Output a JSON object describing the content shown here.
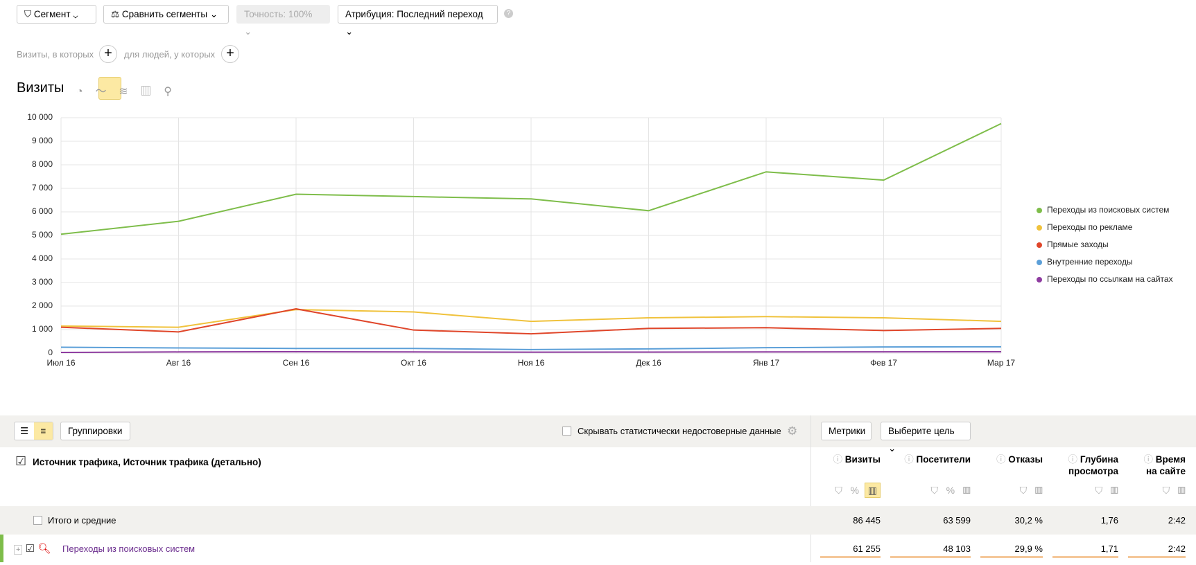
{
  "toolbar": {
    "segment": "Сегмент",
    "compare": "Сравнить сегменты",
    "accuracy": "Точность: 100%",
    "attribution": "Атрибуция: Последний переход"
  },
  "filters": {
    "visits": "Визиты, в которых",
    "people": "для людей, у которых"
  },
  "report_title": "Визиты",
  "chart_data": {
    "type": "line",
    "x": [
      "Июл 16",
      "Авг 16",
      "Сен 16",
      "Окт 16",
      "Ноя 16",
      "Дек 16",
      "Янв 17",
      "Фев 17",
      "Мар 17"
    ],
    "series": [
      {
        "name": "Переходы из поисковых систем",
        "color": "#7ebd4a",
        "values": [
          5050,
          5600,
          6750,
          6650,
          6550,
          6050,
          7700,
          7350,
          9750
        ]
      },
      {
        "name": "Переходы по рекламе",
        "color": "#f0c23c",
        "values": [
          1150,
          1100,
          1850,
          1750,
          1350,
          1500,
          1550,
          1500,
          1350
        ]
      },
      {
        "name": "Прямые заходы",
        "color": "#e0462a",
        "values": [
          1100,
          900,
          1880,
          980,
          820,
          1050,
          1080,
          960,
          1050
        ]
      },
      {
        "name": "Внутренние переходы",
        "color": "#5b9fd8",
        "values": [
          250,
          220,
          200,
          200,
          150,
          180,
          230,
          260,
          270
        ]
      },
      {
        "name": "Переходы по ссылкам на сайтах",
        "color": "#8e3ba0",
        "values": [
          30,
          50,
          60,
          50,
          40,
          45,
          50,
          55,
          60
        ]
      }
    ],
    "ylim": [
      0,
      10000
    ],
    "yticks": [
      0,
      {
        "value": 1000,
        "label": "1 000"
      },
      {
        "value": 2000,
        "label": "2 000"
      },
      {
        "value": 3000,
        "label": "3 000"
      },
      {
        "value": 4000,
        "label": "4 000"
      },
      {
        "value": 5000,
        "label": "5 000"
      },
      {
        "value": 6000,
        "label": "6 000"
      },
      {
        "value": 7000,
        "label": "7 000"
      },
      {
        "value": 8000,
        "label": "8 000"
      },
      {
        "value": 9000,
        "label": "9 000"
      },
      {
        "value": 10000,
        "label": "10 000"
      }
    ],
    "grid": true,
    "legend": "right"
  },
  "table": {
    "groupings": "Группировки",
    "hide_unreliable": "Скрывать статистически недостоверные данные",
    "metrics": "Метрики",
    "goal": "Выберите цель",
    "dimension": "Источник трафика, Источник трафика (детально)",
    "columns": [
      [
        "Визиты"
      ],
      [
        "Посетители"
      ],
      [
        "Отказы"
      ],
      [
        "Глубина",
        "просмотра"
      ],
      [
        "Время",
        "на сайте"
      ]
    ],
    "rows": [
      {
        "label": "Итого и средние",
        "cells": [
          "86 445",
          "63 599",
          "30,2 %",
          "1,76",
          "2:42"
        ]
      },
      {
        "label": "Переходы из поисковых систем",
        "cells": [
          "61 255",
          "48 103",
          "29,9 %",
          "1,71",
          "2:42"
        ]
      }
    ]
  }
}
